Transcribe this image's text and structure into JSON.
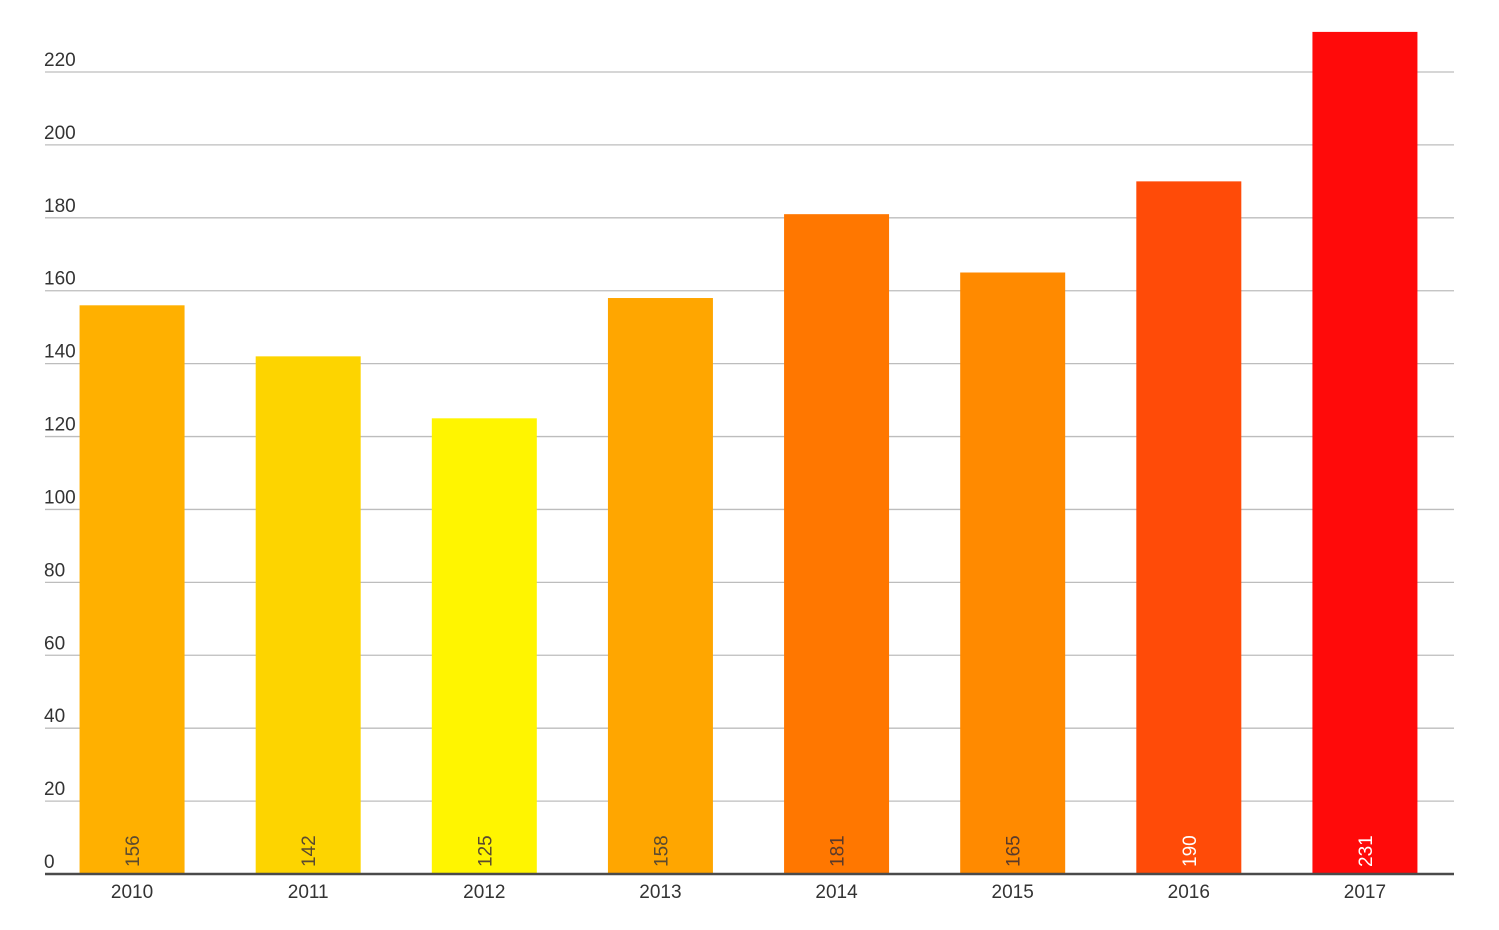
{
  "chart_data": {
    "type": "bar",
    "title": "",
    "xlabel": "",
    "ylabel": "",
    "categories": [
      "2010",
      "2011",
      "2012",
      "2013",
      "2014",
      "2015",
      "2016",
      "2017"
    ],
    "values": [
      156,
      142,
      125,
      158,
      181,
      165,
      190,
      231
    ],
    "data_labels": [
      "156",
      "142",
      "125",
      "158",
      "181",
      "165",
      "190",
      "231"
    ],
    "bar_colors": [
      "#FFB000",
      "#FDD400",
      "#FFF500",
      "#FFA600",
      "#FF7700",
      "#FF8A00",
      "#FF4B08",
      "#FF0A0A"
    ],
    "label_colors": [
      "#5a4a30",
      "#5a4a30",
      "#5a4a30",
      "#5a4a30",
      "#5a3a2a",
      "#5a3a2a",
      "#ffffff",
      "#ffffff"
    ],
    "ylim": [
      0,
      220
    ],
    "y_ticks": [
      "0",
      "20",
      "40",
      "60",
      "80",
      "100",
      "120",
      "140",
      "160",
      "180",
      "200",
      "220"
    ],
    "grid": true,
    "legend": "none"
  }
}
